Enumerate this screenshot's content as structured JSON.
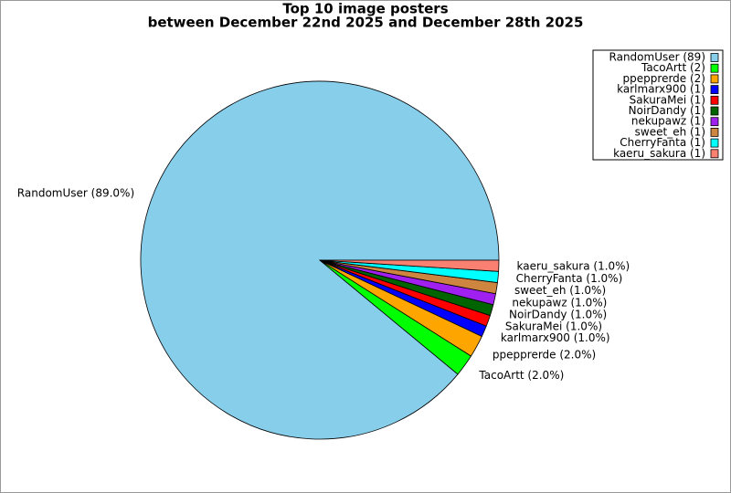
{
  "chart_data": {
    "type": "pie",
    "title": "Top 10 image posters",
    "subtitle": "between December 22nd 2025 and December 28th 2025",
    "categories": [
      "RandomUser",
      "TacoArtt",
      "ppepprerde",
      "karlmarx900",
      "SakuraMei",
      "NoirDandy",
      "nekupawz",
      "sweet_eh",
      "CherryFanta",
      "kaeru_sakura"
    ],
    "values": [
      89,
      2,
      2,
      1,
      1,
      1,
      1,
      1,
      1,
      1
    ],
    "value_labels": [
      "RandomUser (89.0%)",
      "TacoArtt (2.0%)",
      "ppepprerde (2.0%)",
      "karlmarx900 (1.0%)",
      "SakuraMei (1.0%)",
      "NoirDandy (1.0%)",
      "nekupawz (1.0%)",
      "sweet_eh (1.0%)",
      "CherryFanta (1.0%)",
      "kaeru_sakura (1.0%)"
    ],
    "legend_labels": [
      "RandomUser (89)",
      "TacoArtt (2)",
      "ppepprerde (2)",
      "karlmarx900 (1)",
      "SakuraMei (1)",
      "NoirDandy (1)",
      "nekupawz (1)",
      "sweet_eh (1)",
      "CherryFanta (1)",
      "kaeru_sakura (1)"
    ],
    "colors": [
      "#87ceeb",
      "#00ff00",
      "#ffa500",
      "#0000ff",
      "#ff0000",
      "#006400",
      "#a020f0",
      "#cd853f",
      "#00ffff",
      "#fa8072"
    ],
    "legend": "upper right"
  }
}
